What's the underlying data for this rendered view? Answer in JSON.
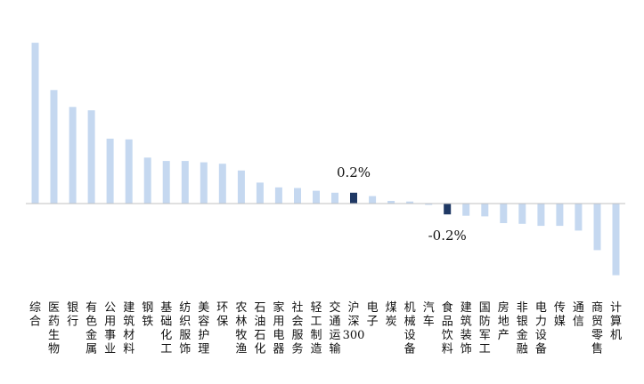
{
  "chart_data": {
    "type": "bar",
    "title": "",
    "xlabel": "",
    "ylabel": "",
    "ylim": [
      -1.3,
      2.5
    ],
    "grid": false,
    "legend": "none",
    "categories": [
      "综合",
      "医药生物",
      "银行",
      "有色金属",
      "公用事业",
      "建筑材料",
      "钢铁",
      "基础化工",
      "纺织服饰",
      "美容护理",
      "环保",
      "农林牧渔",
      "石油石化",
      "家用电器",
      "社会服务",
      "轻工制造",
      "交通运输",
      "沪深300",
      "电子",
      "煤炭",
      "机械设备",
      "汽车",
      "食品饮料",
      "建筑装饰",
      "国防军工",
      "房地产",
      "非银金融",
      "电力设备",
      "传媒",
      "通信",
      "商贸零售",
      "计算机"
    ],
    "values": [
      2.38,
      1.68,
      1.43,
      1.38,
      0.96,
      0.95,
      0.68,
      0.63,
      0.63,
      0.61,
      0.59,
      0.49,
      0.31,
      0.24,
      0.23,
      0.19,
      0.16,
      0.16,
      0.11,
      0.04,
      0.03,
      -0.02,
      -0.16,
      -0.18,
      -0.19,
      -0.29,
      -0.3,
      -0.33,
      -0.33,
      -0.4,
      -0.69,
      -1.06
    ],
    "highlight": {
      "沪深300": {
        "color": "#1f3864",
        "label": "0.2%"
      },
      "食品饮料": {
        "color": "#1f3864",
        "label": "-0.2%"
      }
    },
    "bar_color": "#c5d8f0",
    "axis_color": "#c0c0c0"
  }
}
